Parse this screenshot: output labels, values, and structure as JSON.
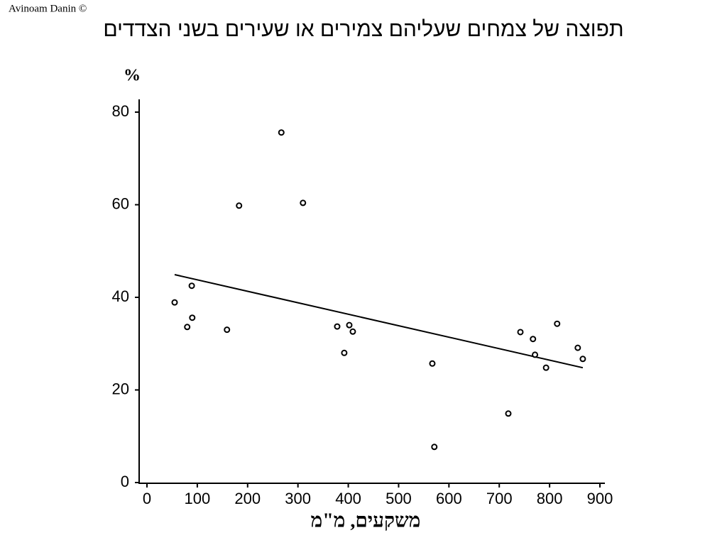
{
  "chart_data": {
    "type": "scatter",
    "credit": "Avinoam Danin ©",
    "title": "תפוצה של צמחים שעליהם צמירים או שעירים בשני הצדדים",
    "y_label": "%",
    "x_label": "משקעים, מ\"מ",
    "xlim": [
      0,
      900
    ],
    "xticks": [
      0,
      100,
      200,
      300,
      400,
      500,
      600,
      700,
      800,
      900
    ],
    "ylim": [
      0,
      80
    ],
    "yticks": [
      0,
      20,
      40,
      60,
      80
    ],
    "color": "#000000",
    "x": [
      55,
      80,
      89,
      90,
      159,
      183,
      267,
      310,
      378,
      392,
      402,
      409,
      567,
      571,
      718,
      742,
      767,
      771,
      793,
      815,
      856,
      866
    ],
    "values": [
      38.9,
      33.6,
      42.5,
      35.6,
      33,
      59.8,
      75.6,
      60.4,
      33.7,
      28,
      34,
      32.6,
      25.7,
      7.7,
      14.9,
      32.5,
      31,
      27.6,
      24.8,
      34.3,
      29.1,
      26.7
    ],
    "trendline": {
      "x": [
        55,
        866
      ],
      "values": [
        44.9,
        24.8
      ]
    }
  }
}
